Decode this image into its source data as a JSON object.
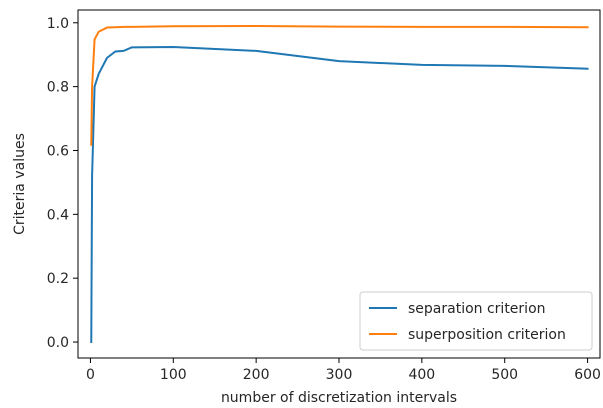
{
  "chart_data": {
    "type": "line",
    "title": "",
    "xlabel": "number of discretization intervals",
    "ylabel": "Criteria values",
    "xlim": [
      -15,
      615
    ],
    "ylim": [
      -0.05,
      1.04
    ],
    "xticks": [
      0,
      100,
      200,
      300,
      400,
      500,
      600
    ],
    "yticks": [
      0.0,
      0.2,
      0.4,
      0.6,
      0.8,
      1.0
    ],
    "xtick_labels": [
      "0",
      "100",
      "200",
      "300",
      "400",
      "500",
      "600"
    ],
    "ytick_labels": [
      "0.0",
      "0.2",
      "0.4",
      "0.6",
      "0.8",
      "1.0"
    ],
    "grid": false,
    "legend_position": "lower-right",
    "series": [
      {
        "name": "separation criterion",
        "color": "#1f77b4",
        "x": [
          1,
          2,
          5,
          10,
          20,
          30,
          40,
          50,
          100,
          200,
          300,
          400,
          500,
          600
        ],
        "y": [
          0.0,
          0.52,
          0.8,
          0.84,
          0.89,
          0.91,
          0.912,
          0.923,
          0.924,
          0.912,
          0.88,
          0.868,
          0.865,
          0.856
        ]
      },
      {
        "name": "superposition criterion",
        "color": "#ff7f0e",
        "x": [
          1,
          2,
          5,
          10,
          20,
          30,
          40,
          50,
          100,
          200,
          300,
          400,
          500,
          600
        ],
        "y": [
          0.618,
          0.8,
          0.948,
          0.972,
          0.985,
          0.986,
          0.987,
          0.987,
          0.989,
          0.99,
          0.988,
          0.987,
          0.987,
          0.986
        ]
      }
    ]
  }
}
